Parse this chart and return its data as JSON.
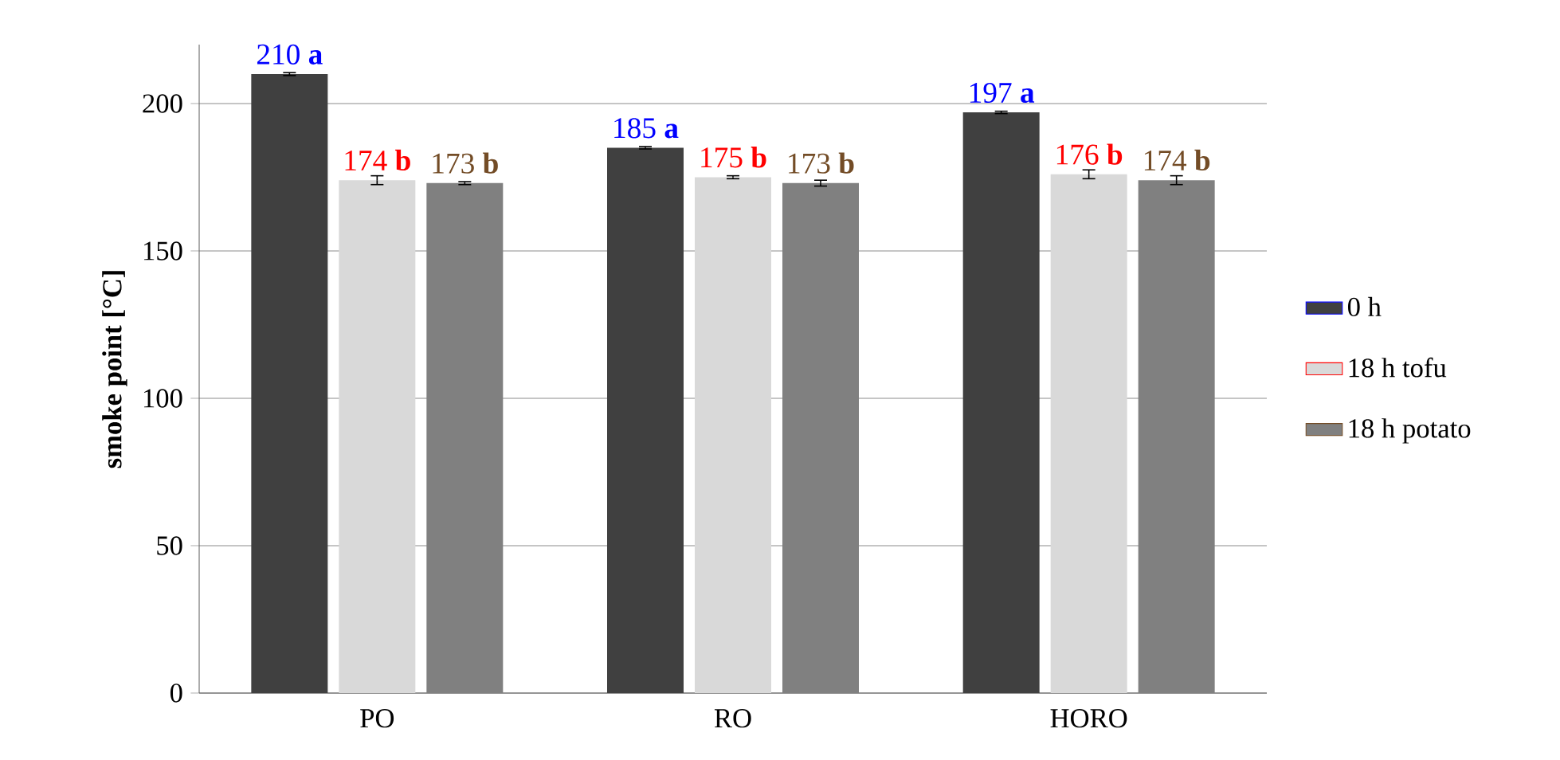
{
  "chart_data": {
    "type": "bar",
    "ylabel": "smoke point [°C]",
    "categories": [
      "PO",
      "RO",
      "HORO"
    ],
    "series": [
      {
        "name": "0 h",
        "color": "#404040",
        "values": [
          210,
          185,
          197
        ],
        "errors": [
          0.5,
          0.4,
          0.4
        ],
        "value_labels": [
          "210 **a**",
          "185 **a**",
          "197 **a**"
        ]
      },
      {
        "name": "18 h tofu",
        "color": "#d9d9d9",
        "values": [
          174,
          175,
          176
        ],
        "errors": [
          1.5,
          0.5,
          1.5
        ],
        "value_labels": [
          "174 **b**",
          "175 **b**",
          "176 **b**"
        ]
      },
      {
        "name": "18 h potato",
        "color": "#808080",
        "values": [
          173,
          173,
          174
        ],
        "errors": [
          0.5,
          1,
          1.5
        ],
        "value_labels": [
          "173 **b**",
          "173 **b**",
          "174 **b**"
        ]
      }
    ],
    "ylim": [
      0,
      220
    ],
    "yticks": [
      0,
      50,
      100,
      150,
      200
    ],
    "grid": "y",
    "legend": "right"
  }
}
